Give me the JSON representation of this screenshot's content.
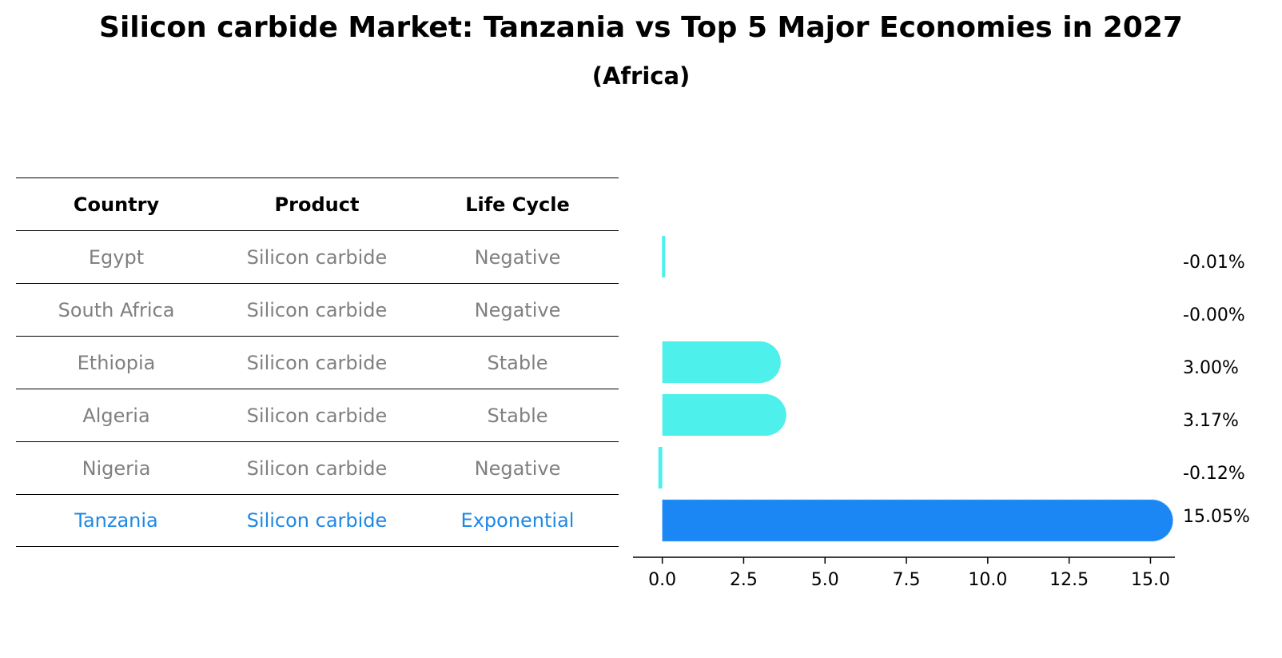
{
  "title": "Silicon carbide Market: Tanzania vs Top 5 Major Economies in 2027",
  "subtitle": "(Africa)",
  "table": {
    "headers": [
      "Country",
      "Product",
      "Life Cycle"
    ],
    "rows": [
      {
        "country": "Egypt",
        "product": "Silicon carbide",
        "life_cycle": "Negative"
      },
      {
        "country": "South Africa",
        "product": "Silicon carbide",
        "life_cycle": "Negative"
      },
      {
        "country": "Ethiopia",
        "product": "Silicon carbide",
        "life_cycle": "Stable"
      },
      {
        "country": "Algeria",
        "product": "Silicon carbide",
        "life_cycle": "Stable"
      },
      {
        "country": "Nigeria",
        "product": "Silicon carbide",
        "life_cycle": "Negative"
      },
      {
        "country": "Tanzania",
        "product": "Silicon carbide",
        "life_cycle": "Exponential"
      }
    ]
  },
  "colors": {
    "bar": "#4df0ea",
    "highlight": "#1a87f5",
    "muted_text": "#808080",
    "highlight_text": "#1e88e5"
  },
  "chart_data": {
    "type": "bar",
    "orientation": "horizontal",
    "categories": [
      "Egypt",
      "South Africa",
      "Ethiopia",
      "Algeria",
      "Nigeria",
      "Tanzania"
    ],
    "values": [
      -0.01,
      -0.0,
      3.0,
      3.17,
      -0.12,
      15.05
    ],
    "value_labels": [
      "-0.01%",
      "-0.00%",
      "3.00%",
      "3.17%",
      "-0.12%",
      "15.05%"
    ],
    "highlight": "Tanzania",
    "xlim": [
      -0.9,
      15.75
    ],
    "xticks": [
      0.0,
      2.5,
      5.0,
      7.5,
      10.0,
      12.5,
      15.0
    ],
    "xtick_labels": [
      "0.0",
      "2.5",
      "5.0",
      "7.5",
      "10.0",
      "12.5",
      "15.0"
    ]
  }
}
